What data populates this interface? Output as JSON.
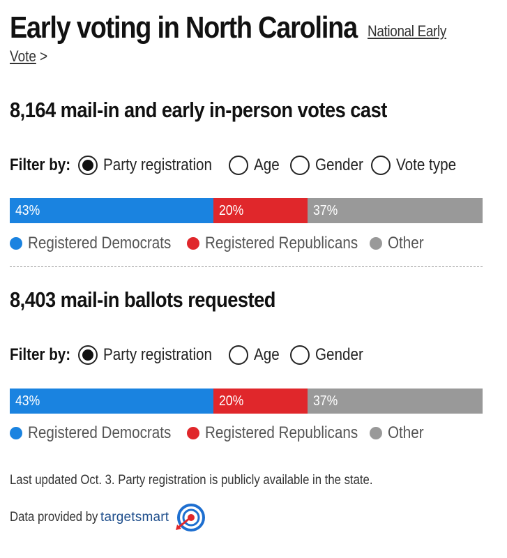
{
  "header": {
    "title": "Early voting in North Carolina",
    "link_line1": "National Early",
    "link_line2": "Vote",
    "link_arrow": ">"
  },
  "sections": [
    {
      "title": "8,164 mail-in and early in-person votes cast",
      "filter_label": "Filter by:",
      "filters": [
        "Party registration",
        "Age",
        "Gender",
        "Vote type"
      ],
      "selected_filter": "Party registration"
    },
    {
      "title": "8,403 mail-in ballots requested",
      "filter_label": "Filter by:",
      "filters": [
        "Party registration",
        "Age",
        "Gender"
      ],
      "selected_filter": "Party registration"
    }
  ],
  "legend": [
    "Registered Democrats",
    "Registered Republicans",
    "Other"
  ],
  "colors": {
    "dem": "#1a83e0",
    "rep": "#e0272b",
    "other": "#999999"
  },
  "chart_data": [
    {
      "type": "bar",
      "stacked": true,
      "title": "8,164 mail-in and early in-person votes cast",
      "categories": [
        "Registered Democrats",
        "Registered Republicans",
        "Other"
      ],
      "values": [
        43,
        20,
        37
      ],
      "labels": [
        "43%",
        "20%",
        "37%"
      ],
      "unit": "%"
    },
    {
      "type": "bar",
      "stacked": true,
      "title": "8,403 mail-in ballots requested",
      "categories": [
        "Registered Democrats",
        "Registered Republicans",
        "Other"
      ],
      "values": [
        43,
        20,
        37
      ],
      "labels": [
        "43%",
        "20%",
        "37%"
      ],
      "unit": "%"
    }
  ],
  "footer": {
    "note": "Last updated Oct. 3. Party registration is publicly available in the state.",
    "provider_text": "Data provided by",
    "provider_brand": "targetsmart"
  }
}
